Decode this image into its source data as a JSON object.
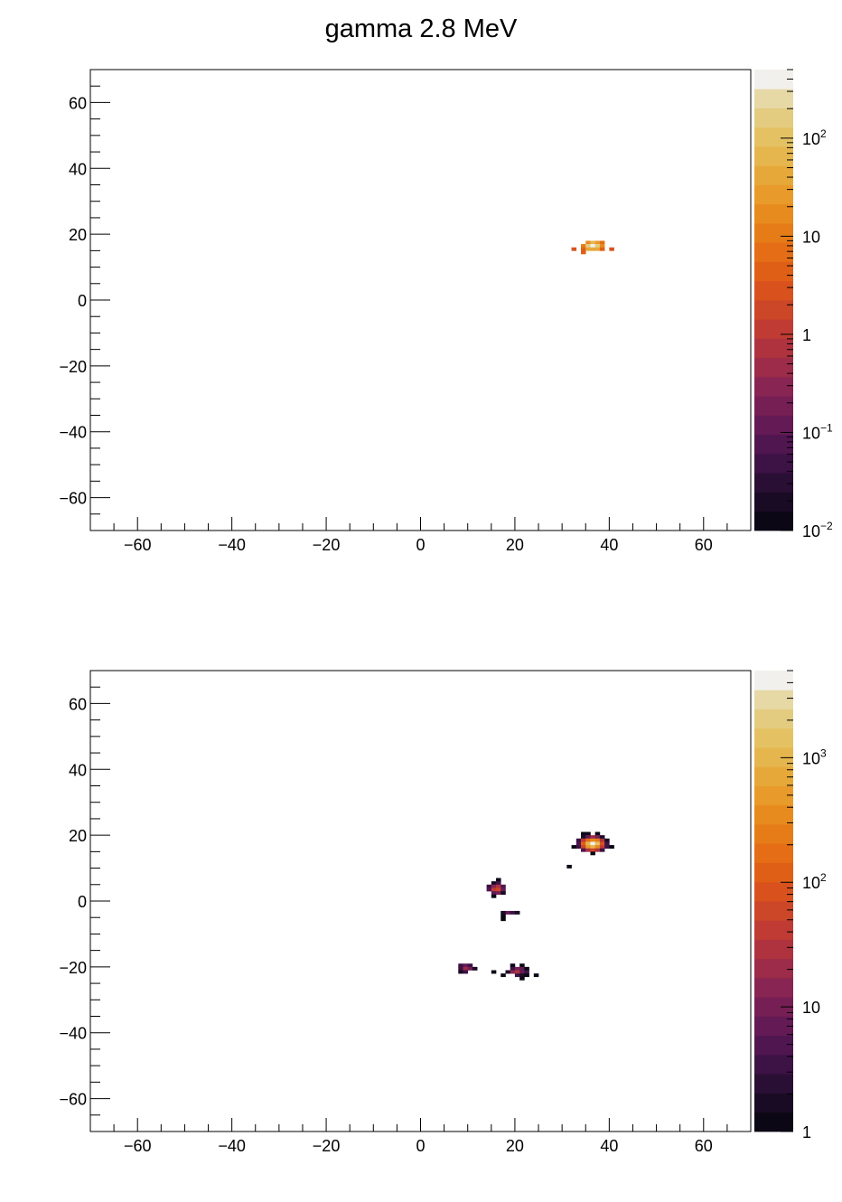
{
  "title": "gamma 2.8 MeV",
  "chart_data": [
    {
      "type": "heatmap",
      "xlim": [
        -70,
        70
      ],
      "ylim": [
        -70,
        70
      ],
      "x_ticks": [
        -60,
        -40,
        -20,
        0,
        20,
        40,
        60
      ],
      "y_ticks": [
        -60,
        -40,
        -20,
        0,
        20,
        40,
        60
      ],
      "x_tick_labels": [
        "−60",
        "−40",
        "−20",
        "0",
        "20",
        "40",
        "60"
      ],
      "y_tick_labels": [
        "−60",
        "−40",
        "−20",
        "0",
        "20",
        "40",
        "60"
      ],
      "colorbar": {
        "scale": "log",
        "range": [
          0.01,
          500
        ],
        "ticks": [
          0.01,
          0.1,
          1,
          10,
          100
        ],
        "tick_labels": [
          {
            "base": "10",
            "exp": "−2"
          },
          {
            "base": "10",
            "exp": "−1"
          },
          {
            "base": "1",
            "exp": ""
          },
          {
            "base": "10",
            "exp": ""
          },
          {
            "base": "10",
            "exp": "2"
          }
        ]
      },
      "palette": [
        "#0c0715",
        "#1a0b24",
        "#2a0f35",
        "#3d1245",
        "#501650",
        "#631a55",
        "#761f55",
        "#892552",
        "#9c2c49",
        "#ae333f",
        "#bf3b34",
        "#cc4628",
        "#d9521e",
        "#e05f17",
        "#e46d15",
        "#e67c17",
        "#e88b1f",
        "#e89a2a",
        "#e7a83a",
        "#e6b64e",
        "#e4c264",
        "#e3cc80",
        "#e6d9a6",
        "#f1f0ec"
      ],
      "bins": [
        {
          "x": 35,
          "y": 17,
          "z": 20
        },
        {
          "x": 36,
          "y": 17,
          "z": 60
        },
        {
          "x": 37,
          "y": 17,
          "z": 30
        },
        {
          "x": 38,
          "y": 17,
          "z": 8
        },
        {
          "x": 34,
          "y": 16,
          "z": 12
        },
        {
          "x": 35,
          "y": 16,
          "z": 150
        },
        {
          "x": 36,
          "y": 16,
          "z": 500
        },
        {
          "x": 37,
          "y": 16,
          "z": 200
        },
        {
          "x": 38,
          "y": 16,
          "z": 15
        },
        {
          "x": 34,
          "y": 15,
          "z": 4
        },
        {
          "x": 35,
          "y": 15,
          "z": 40
        },
        {
          "x": 36,
          "y": 15,
          "z": 50
        },
        {
          "x": 37,
          "y": 15,
          "z": 40
        },
        {
          "x": 38,
          "y": 15,
          "z": 5
        },
        {
          "x": 32,
          "y": 15,
          "z": 3
        },
        {
          "x": 40,
          "y": 15,
          "z": 3
        },
        {
          "x": 34,
          "y": 14,
          "z": 4
        }
      ]
    },
    {
      "type": "heatmap",
      "xlim": [
        -70,
        70
      ],
      "ylim": [
        -70,
        70
      ],
      "x_ticks": [
        -60,
        -40,
        -20,
        0,
        20,
        40,
        60
      ],
      "y_ticks": [
        -60,
        -40,
        -20,
        0,
        20,
        40,
        60
      ],
      "x_tick_labels": [
        "−60",
        "−40",
        "−20",
        "0",
        "20",
        "40",
        "60"
      ],
      "y_tick_labels": [
        "−60",
        "−40",
        "−20",
        "0",
        "20",
        "40",
        "60"
      ],
      "colorbar": {
        "scale": "log",
        "range": [
          1,
          5000
        ],
        "ticks": [
          1,
          10,
          100,
          1000
        ],
        "tick_labels": [
          {
            "base": "1",
            "exp": ""
          },
          {
            "base": "10",
            "exp": ""
          },
          {
            "base": "10",
            "exp": "2"
          },
          {
            "base": "10",
            "exp": "3"
          }
        ]
      },
      "palette": [
        "#0c0715",
        "#1a0b24",
        "#2a0f35",
        "#3d1245",
        "#501650",
        "#631a55",
        "#761f55",
        "#892552",
        "#9c2c49",
        "#ae333f",
        "#bf3b34",
        "#cc4628",
        "#d9521e",
        "#e05f17",
        "#e46d15",
        "#e67c17",
        "#e88b1f",
        "#e89a2a",
        "#e7a83a",
        "#e6b64e",
        "#e4c264",
        "#e3cc80",
        "#e6d9a6",
        "#f1f0ec"
      ],
      "bins": [
        {
          "x": 34,
          "y": 20,
          "z": 1
        },
        {
          "x": 35,
          "y": 20,
          "z": 1
        },
        {
          "x": 37,
          "y": 20,
          "z": 1
        },
        {
          "x": 34,
          "y": 19,
          "z": 2
        },
        {
          "x": 35,
          "y": 19,
          "z": 8
        },
        {
          "x": 36,
          "y": 19,
          "z": 20
        },
        {
          "x": 37,
          "y": 19,
          "z": 10
        },
        {
          "x": 38,
          "y": 19,
          "z": 2
        },
        {
          "x": 33,
          "y": 18,
          "z": 3
        },
        {
          "x": 34,
          "y": 18,
          "z": 40
        },
        {
          "x": 35,
          "y": 18,
          "z": 200
        },
        {
          "x": 36,
          "y": 18,
          "z": 400
        },
        {
          "x": 37,
          "y": 18,
          "z": 250
        },
        {
          "x": 38,
          "y": 18,
          "z": 30
        },
        {
          "x": 39,
          "y": 18,
          "z": 2
        },
        {
          "x": 33,
          "y": 17,
          "z": 5
        },
        {
          "x": 34,
          "y": 17,
          "z": 120
        },
        {
          "x": 35,
          "y": 17,
          "z": 1200
        },
        {
          "x": 36,
          "y": 17,
          "z": 5000
        },
        {
          "x": 37,
          "y": 17,
          "z": 1500
        },
        {
          "x": 38,
          "y": 17,
          "z": 90
        },
        {
          "x": 39,
          "y": 17,
          "z": 3
        },
        {
          "x": 32,
          "y": 16,
          "z": 1
        },
        {
          "x": 33,
          "y": 16,
          "z": 4
        },
        {
          "x": 34,
          "y": 16,
          "z": 60
        },
        {
          "x": 35,
          "y": 16,
          "z": 500
        },
        {
          "x": 36,
          "y": 16,
          "z": 900
        },
        {
          "x": 37,
          "y": 16,
          "z": 400
        },
        {
          "x": 38,
          "y": 16,
          "z": 40
        },
        {
          "x": 39,
          "y": 16,
          "z": 3
        },
        {
          "x": 40,
          "y": 16,
          "z": 1
        },
        {
          "x": 34,
          "y": 15,
          "z": 5
        },
        {
          "x": 35,
          "y": 15,
          "z": 30
        },
        {
          "x": 36,
          "y": 15,
          "z": 60
        },
        {
          "x": 37,
          "y": 15,
          "z": 25
        },
        {
          "x": 38,
          "y": 15,
          "z": 3
        },
        {
          "x": 36,
          "y": 14,
          "z": 1
        },
        {
          "x": 31,
          "y": 10,
          "z": 1
        },
        {
          "x": 16,
          "y": 6,
          "z": 1
        },
        {
          "x": 15,
          "y": 5,
          "z": 2
        },
        {
          "x": 16,
          "y": 5,
          "z": 4
        },
        {
          "x": 14,
          "y": 4,
          "z": 3
        },
        {
          "x": 15,
          "y": 4,
          "z": 15
        },
        {
          "x": 16,
          "y": 4,
          "z": 25
        },
        {
          "x": 17,
          "y": 4,
          "z": 5
        },
        {
          "x": 14,
          "y": 3,
          "z": 5
        },
        {
          "x": 15,
          "y": 3,
          "z": 40
        },
        {
          "x": 16,
          "y": 3,
          "z": 60
        },
        {
          "x": 17,
          "y": 3,
          "z": 8
        },
        {
          "x": 15,
          "y": 2,
          "z": 6
        },
        {
          "x": 16,
          "y": 2,
          "z": 10
        },
        {
          "x": 17,
          "y": 2,
          "z": 2
        },
        {
          "x": 15,
          "y": 1,
          "z": 1
        },
        {
          "x": 17,
          "y": -4,
          "z": 2
        },
        {
          "x": 18,
          "y": -4,
          "z": 8
        },
        {
          "x": 19,
          "y": -4,
          "z": 4
        },
        {
          "x": 20,
          "y": -4,
          "z": 2
        },
        {
          "x": 17,
          "y": -5,
          "z": 1
        },
        {
          "x": 17,
          "y": -6,
          "z": 1
        },
        {
          "x": 8,
          "y": -20,
          "z": 3
        },
        {
          "x": 9,
          "y": -20,
          "z": 6
        },
        {
          "x": 10,
          "y": -20,
          "z": 4
        },
        {
          "x": 8,
          "y": -21,
          "z": 4
        },
        {
          "x": 9,
          "y": -21,
          "z": 20
        },
        {
          "x": 10,
          "y": -21,
          "z": 10
        },
        {
          "x": 11,
          "y": -21,
          "z": 2
        },
        {
          "x": 8,
          "y": -22,
          "z": 2
        },
        {
          "x": 9,
          "y": -22,
          "z": 3
        },
        {
          "x": 19,
          "y": -20,
          "z": 1
        },
        {
          "x": 21,
          "y": -20,
          "z": 1
        },
        {
          "x": 19,
          "y": -21,
          "z": 3
        },
        {
          "x": 20,
          "y": -21,
          "z": 10
        },
        {
          "x": 21,
          "y": -21,
          "z": 6
        },
        {
          "x": 22,
          "y": -21,
          "z": 1
        },
        {
          "x": 18,
          "y": -22,
          "z": 2
        },
        {
          "x": 19,
          "y": -22,
          "z": 15
        },
        {
          "x": 20,
          "y": -22,
          "z": 25
        },
        {
          "x": 21,
          "y": -22,
          "z": 8
        },
        {
          "x": 22,
          "y": -22,
          "z": 3
        },
        {
          "x": 20,
          "y": -23,
          "z": 4
        },
        {
          "x": 21,
          "y": -23,
          "z": 2
        },
        {
          "x": 22,
          "y": -23,
          "z": 1
        },
        {
          "x": 15,
          "y": -22,
          "z": 1
        },
        {
          "x": 17,
          "y": -23,
          "z": 1
        },
        {
          "x": 24,
          "y": -23,
          "z": 1
        },
        {
          "x": 21,
          "y": -24,
          "z": 1
        }
      ]
    }
  ]
}
